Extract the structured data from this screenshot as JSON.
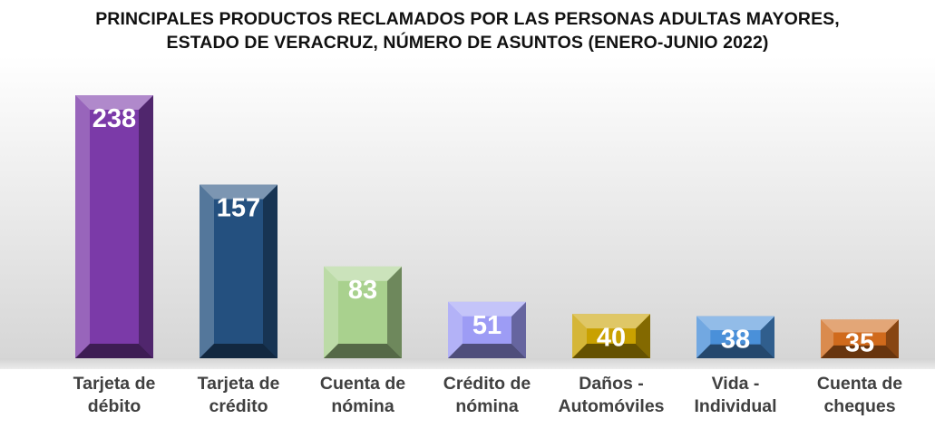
{
  "title_lines": [
    "PRINCIPALES PRODUCTOS RECLAMADOS POR LAS PERSONAS ADULTAS MAYORES,",
    "ESTADO DE VERACRUZ, NÚMERO DE ASUNTOS (ENERO-JUNIO 2022)"
  ],
  "chart_data": {
    "type": "bar",
    "title": "PRINCIPALES PRODUCTOS RECLAMADOS POR LAS PERSONAS ADULTAS MAYORES, ESTADO DE VERACRUZ, NÚMERO DE ASUNTOS (ENERO-JUNIO 2022)",
    "categories": [
      [
        "Tarjeta de",
        "débito"
      ],
      [
        "Tarjeta de",
        "crédito"
      ],
      [
        "Cuenta de",
        "nómina"
      ],
      [
        "Crédito de",
        "nómina"
      ],
      [
        "Daños -",
        "Automóviles"
      ],
      [
        "Vida -",
        "Individual"
      ],
      [
        "Cuenta de",
        "cheques"
      ]
    ],
    "values": [
      238,
      157,
      83,
      51,
      40,
      38,
      35
    ],
    "colors": [
      "#7b3aa8",
      "#24507f",
      "#a9d18e",
      "#9d9cf5",
      "#c9a100",
      "#4a90d9",
      "#d06a1c"
    ],
    "ylim": [
      0,
      250
    ],
    "grid": false,
    "legend": "none"
  }
}
